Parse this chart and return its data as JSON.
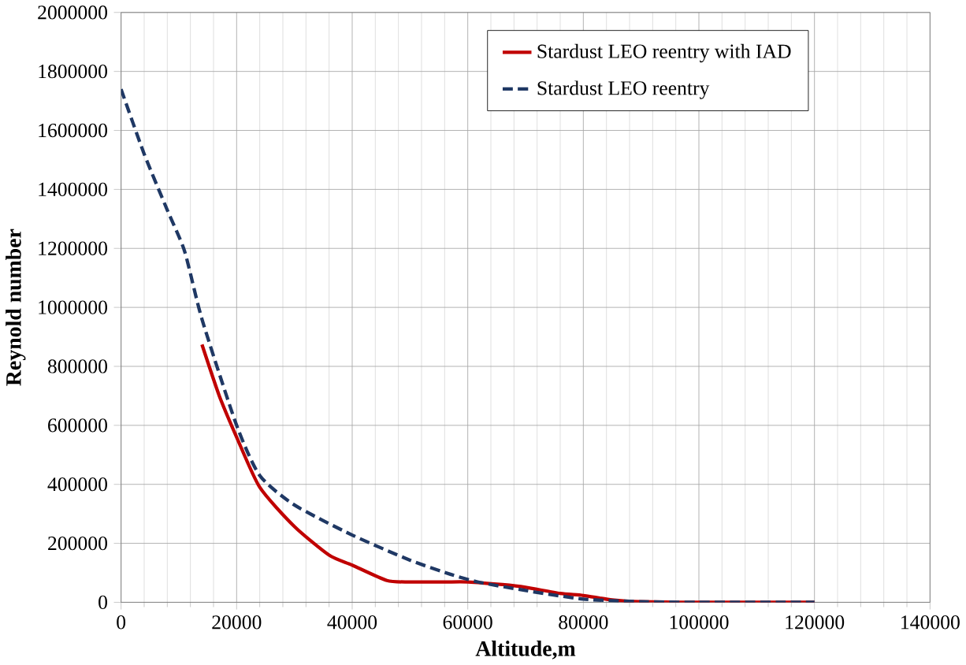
{
  "chart_data": {
    "type": "line",
    "xlabel": "Altitude,m",
    "ylabel": "Reynold number",
    "xlim": [
      0,
      140000
    ],
    "ylim": [
      0,
      2000000
    ],
    "xticks": [
      0,
      20000,
      40000,
      60000,
      80000,
      100000,
      120000,
      140000
    ],
    "yticks": [
      0,
      200000,
      400000,
      600000,
      800000,
      1000000,
      1200000,
      1400000,
      1600000,
      1800000,
      2000000
    ],
    "grid": true,
    "legend": "top right",
    "series": [
      {
        "name": "Stardust LEO reentry with IAD",
        "color": "#c00000",
        "line_style": "solid",
        "x": [
          14000,
          17000,
          20000,
          24000,
          30000,
          36000,
          40000,
          46000,
          50000,
          56000,
          60000,
          66000,
          70000,
          76000,
          80000,
          85000,
          90000,
          100000,
          120000
        ],
        "values": [
          874000,
          700000,
          560000,
          390000,
          257000,
          160000,
          126000,
          74000,
          69000,
          69000,
          69000,
          60000,
          51000,
          30000,
          23000,
          8000,
          2000,
          0,
          0
        ]
      },
      {
        "name": "Stardust LEO reentry",
        "color": "#1f3864",
        "line_style": "dashed",
        "x": [
          0,
          4000,
          8000,
          11000,
          14000,
          20000,
          24000,
          30000,
          40000,
          50000,
          57000,
          62000,
          70000,
          80000,
          90000,
          100000,
          120000
        ],
        "values": [
          1740000,
          1520000,
          1330000,
          1190000,
          960000,
          600000,
          430000,
          330000,
          228000,
          143000,
          95000,
          68000,
          40000,
          11000,
          2000,
          0,
          0
        ]
      }
    ]
  }
}
